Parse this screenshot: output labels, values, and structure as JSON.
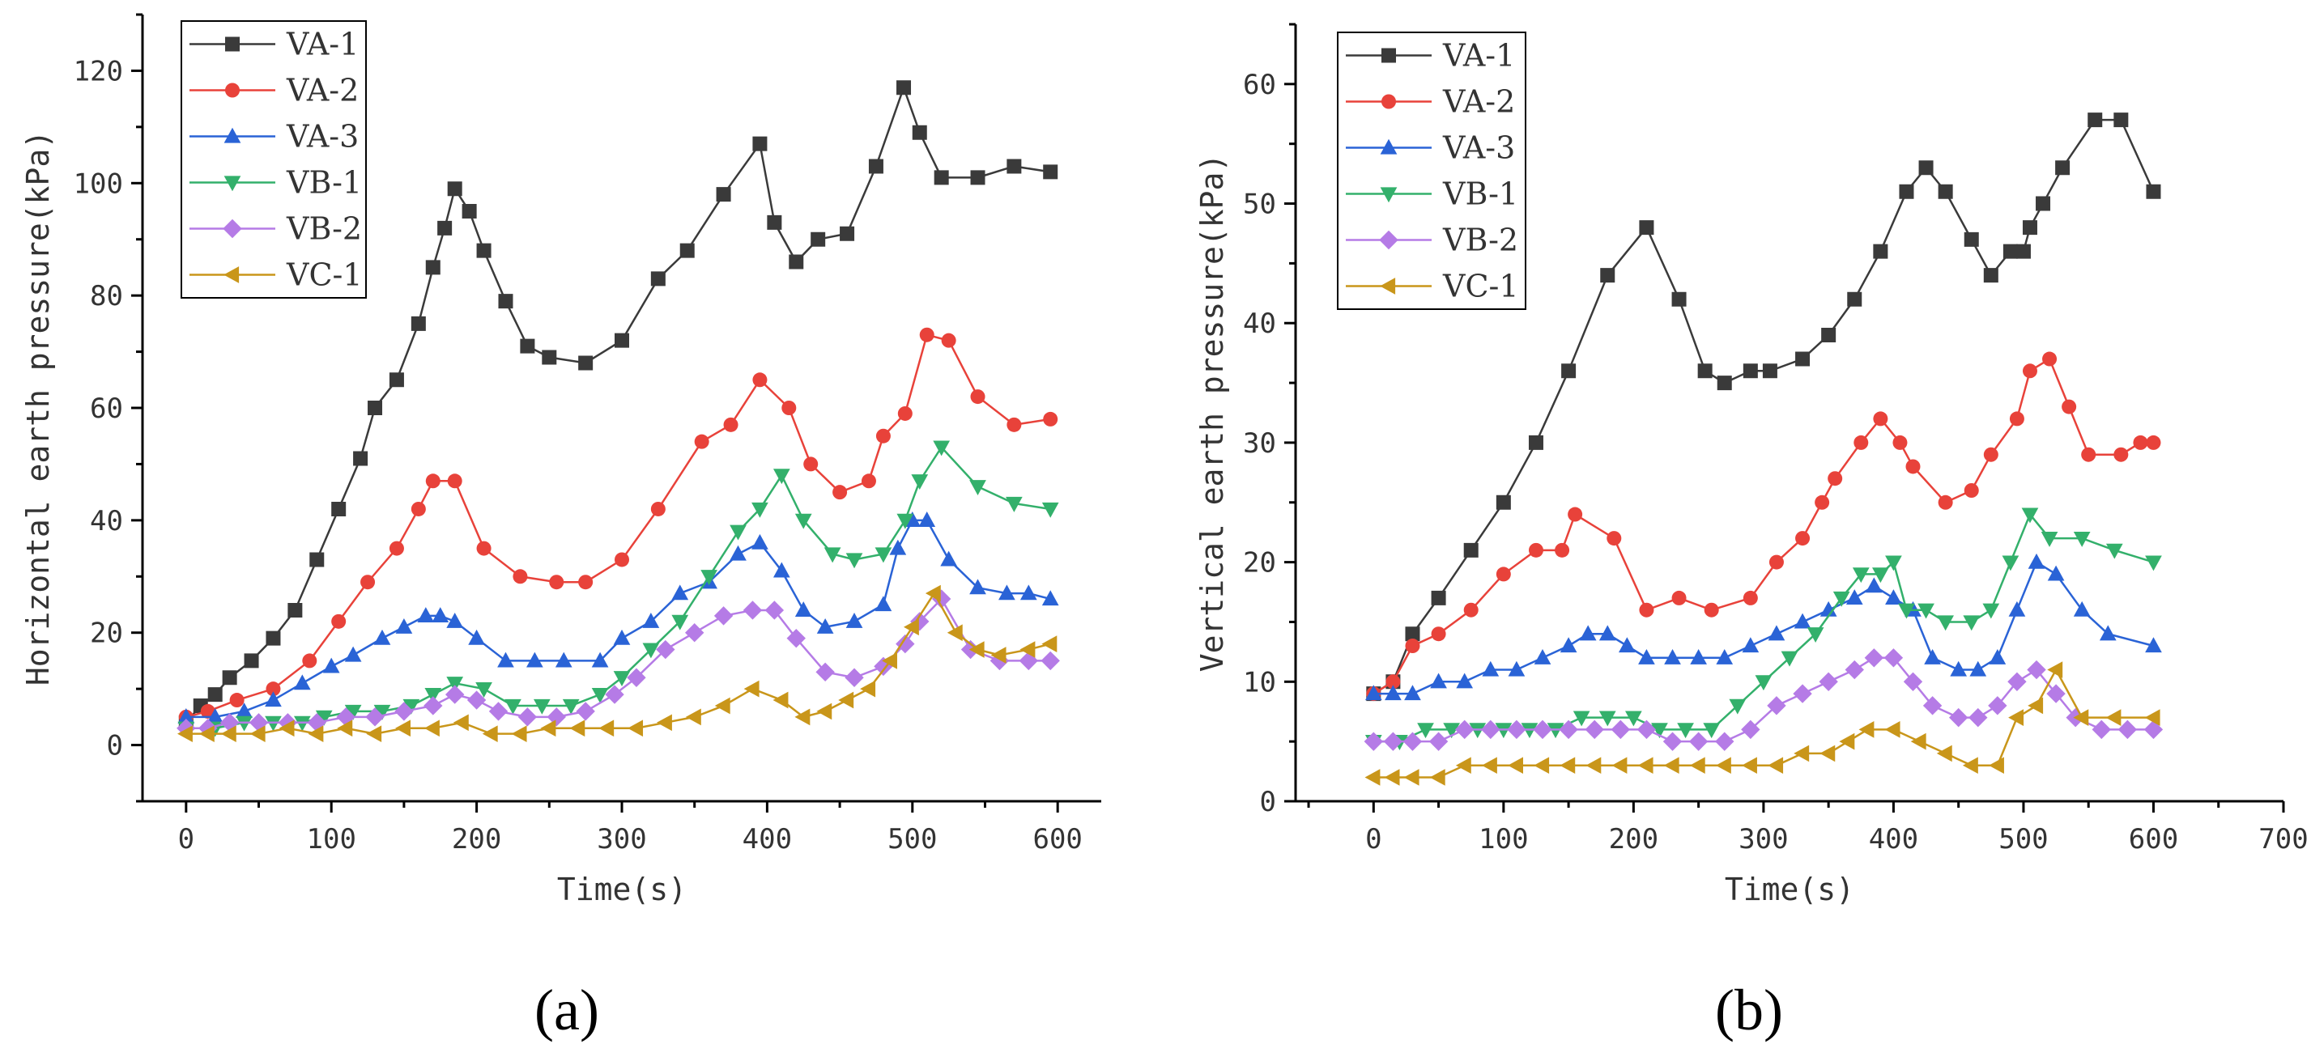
{
  "chart_data": [
    {
      "type": "line",
      "panel_label": "(a)",
      "xlabel": "Time(s)",
      "ylabel": "Horizontal earth pressure(kPa)",
      "xlim": [
        -30,
        630
      ],
      "ylim": [
        -10,
        130
      ],
      "xticks": [
        0,
        100,
        200,
        300,
        400,
        500,
        600
      ],
      "yticks": [
        0,
        20,
        40,
        60,
        80,
        100,
        120
      ],
      "legend_position": "top-left",
      "series": [
        {
          "name": "VA-1",
          "color": "#3a3a3a",
          "marker": "square",
          "x": [
            0,
            10,
            20,
            30,
            45,
            60,
            75,
            90,
            105,
            120,
            130,
            145,
            160,
            170,
            178,
            185,
            195,
            205,
            220,
            235,
            250,
            275,
            300,
            325,
            345,
            370,
            395,
            405,
            420,
            435,
            455,
            475,
            494,
            505,
            520,
            545,
            570,
            595
          ],
          "y": [
            4,
            7,
            9,
            12,
            15,
            19,
            24,
            33,
            42,
            51,
            60,
            65,
            75,
            85,
            92,
            99,
            95,
            88,
            79,
            71,
            69,
            68,
            72,
            83,
            88,
            98,
            107,
            93,
            86,
            90,
            91,
            103,
            117,
            109,
            101,
            101,
            103,
            102
          ]
        },
        {
          "name": "VA-2",
          "color": "#e8423a",
          "marker": "circle",
          "x": [
            0,
            15,
            35,
            60,
            85,
            105,
            125,
            145,
            160,
            170,
            185,
            205,
            230,
            255,
            275,
            300,
            325,
            355,
            375,
            395,
            415,
            430,
            450,
            470,
            480,
            495,
            510,
            525,
            545,
            570,
            595
          ],
          "y": [
            5,
            6,
            8,
            10,
            15,
            22,
            29,
            35,
            42,
            47,
            47,
            35,
            30,
            29,
            29,
            33,
            42,
            54,
            57,
            65,
            60,
            50,
            45,
            47,
            55,
            59,
            73,
            72,
            62,
            57,
            58
          ]
        },
        {
          "name": "VA-3",
          "color": "#2a63d6",
          "marker": "triangle-up",
          "x": [
            0,
            20,
            40,
            60,
            80,
            100,
            115,
            135,
            150,
            165,
            175,
            185,
            200,
            220,
            240,
            260,
            285,
            300,
            320,
            340,
            360,
            380,
            395,
            410,
            425,
            440,
            460,
            480,
            490,
            500,
            510,
            525,
            545,
            565,
            580,
            595
          ],
          "y": [
            5,
            5,
            6,
            8,
            11,
            14,
            16,
            19,
            21,
            23,
            23,
            22,
            19,
            15,
            15,
            15,
            15,
            19,
            22,
            27,
            29,
            34,
            36,
            31,
            24,
            21,
            22,
            25,
            35,
            40,
            40,
            33,
            28,
            27,
            27,
            26
          ]
        },
        {
          "name": "VB-1",
          "color": "#33b06b",
          "marker": "triangle-down",
          "x": [
            0,
            20,
            40,
            60,
            80,
            95,
            115,
            135,
            155,
            170,
            185,
            205,
            225,
            245,
            265,
            285,
            300,
            320,
            340,
            360,
            380,
            395,
            410,
            425,
            445,
            460,
            480,
            495,
            505,
            520,
            545,
            570,
            595
          ],
          "y": [
            3,
            3,
            4,
            4,
            4,
            5,
            6,
            6,
            7,
            9,
            11,
            10,
            7,
            7,
            7,
            9,
            12,
            17,
            22,
            30,
            38,
            42,
            48,
            40,
            34,
            33,
            34,
            40,
            47,
            53,
            46,
            43,
            42
          ]
        },
        {
          "name": "VB-2",
          "color": "#b57be6",
          "marker": "diamond",
          "x": [
            0,
            15,
            30,
            50,
            70,
            90,
            110,
            130,
            150,
            170,
            185,
            200,
            215,
            235,
            255,
            275,
            295,
            310,
            330,
            350,
            370,
            390,
            405,
            420,
            440,
            460,
            480,
            495,
            505,
            520,
            540,
            560,
            580,
            595
          ],
          "y": [
            3,
            3,
            4,
            4,
            4,
            4,
            5,
            5,
            6,
            7,
            9,
            8,
            6,
            5,
            5,
            6,
            9,
            12,
            17,
            20,
            23,
            24,
            24,
            19,
            13,
            12,
            14,
            18,
            22,
            26,
            17,
            15,
            15,
            15
          ]
        },
        {
          "name": "VC-1",
          "color": "#c9961a",
          "marker": "triangle-left",
          "x": [
            0,
            15,
            30,
            50,
            70,
            90,
            110,
            130,
            150,
            170,
            190,
            210,
            230,
            250,
            270,
            290,
            310,
            330,
            350,
            370,
            390,
            410,
            425,
            440,
            455,
            470,
            485,
            500,
            515,
            530,
            545,
            560,
            580,
            595
          ],
          "y": [
            2,
            2,
            2,
            2,
            3,
            2,
            3,
            2,
            3,
            3,
            4,
            2,
            2,
            3,
            3,
            3,
            3,
            4,
            5,
            7,
            10,
            8,
            5,
            6,
            8,
            10,
            15,
            21,
            27,
            20,
            17,
            16,
            17,
            18
          ]
        }
      ]
    },
    {
      "type": "line",
      "panel_label": "(b)",
      "xlabel": "Time(s)",
      "ylabel": "Vertical earth pressure(kPa)",
      "xlim": [
        -60,
        700
      ],
      "ylim": [
        0,
        65
      ],
      "xticks": [
        0,
        100,
        200,
        300,
        400,
        500,
        600,
        700
      ],
      "yticks": [
        0,
        10,
        20,
        30,
        40,
        50,
        60
      ],
      "legend_position": "top-left",
      "series": [
        {
          "name": "VA-1",
          "color": "#3a3a3a",
          "marker": "square",
          "x": [
            0,
            15,
            30,
            50,
            75,
            100,
            125,
            150,
            180,
            210,
            235,
            255,
            270,
            290,
            305,
            330,
            350,
            370,
            390,
            410,
            425,
            440,
            460,
            475,
            490,
            500,
            505,
            515,
            530,
            555,
            575,
            600
          ],
          "y": [
            9,
            10,
            14,
            17,
            21,
            25,
            30,
            36,
            44,
            48,
            42,
            36,
            35,
            36,
            36,
            37,
            39,
            42,
            46,
            51,
            53,
            51,
            47,
            44,
            46,
            46,
            48,
            50,
            53,
            57,
            57,
            51
          ]
        },
        {
          "name": "VA-2",
          "color": "#e8423a",
          "marker": "circle",
          "x": [
            0,
            15,
            30,
            50,
            75,
            100,
            125,
            145,
            155,
            185,
            210,
            235,
            260,
            290,
            310,
            330,
            345,
            355,
            375,
            390,
            405,
            415,
            440,
            460,
            475,
            495,
            505,
            520,
            535,
            550,
            575,
            590,
            600
          ],
          "y": [
            9,
            10,
            13,
            14,
            16,
            19,
            21,
            21,
            24,
            22,
            16,
            17,
            16,
            17,
            20,
            22,
            25,
            27,
            30,
            32,
            30,
            28,
            25,
            26,
            29,
            32,
            36,
            37,
            33,
            29,
            29,
            30,
            30
          ]
        },
        {
          "name": "VA-3",
          "color": "#2a63d6",
          "marker": "triangle-up",
          "x": [
            0,
            15,
            30,
            50,
            70,
            90,
            110,
            130,
            150,
            165,
            180,
            195,
            210,
            230,
            250,
            270,
            290,
            310,
            330,
            350,
            370,
            385,
            400,
            415,
            430,
            450,
            465,
            480,
            495,
            510,
            525,
            545,
            565,
            600
          ],
          "y": [
            9,
            9,
            9,
            10,
            10,
            11,
            11,
            12,
            13,
            14,
            14,
            13,
            12,
            12,
            12,
            12,
            13,
            14,
            15,
            16,
            17,
            18,
            17,
            16,
            12,
            11,
            11,
            12,
            16,
            20,
            19,
            16,
            14,
            13
          ]
        },
        {
          "name": "VB-1",
          "color": "#33b06b",
          "marker": "triangle-down",
          "x": [
            0,
            20,
            40,
            60,
            80,
            100,
            120,
            140,
            160,
            180,
            200,
            220,
            240,
            260,
            280,
            300,
            320,
            340,
            360,
            375,
            390,
            400,
            410,
            425,
            440,
            460,
            475,
            490,
            505,
            520,
            545,
            570,
            600
          ],
          "y": [
            5,
            5,
            6,
            6,
            6,
            6,
            6,
            6,
            7,
            7,
            7,
            6,
            6,
            6,
            8,
            10,
            12,
            14,
            17,
            19,
            19,
            20,
            16,
            16,
            15,
            15,
            16,
            20,
            24,
            22,
            22,
            21,
            20
          ]
        },
        {
          "name": "VB-2",
          "color": "#b57be6",
          "marker": "diamond",
          "x": [
            0,
            15,
            30,
            50,
            70,
            90,
            110,
            130,
            150,
            170,
            190,
            210,
            230,
            250,
            270,
            290,
            310,
            330,
            350,
            370,
            385,
            400,
            415,
            430,
            450,
            465,
            480,
            495,
            510,
            525,
            540,
            560,
            580,
            600
          ],
          "y": [
            5,
            5,
            5,
            5,
            6,
            6,
            6,
            6,
            6,
            6,
            6,
            6,
            5,
            5,
            5,
            6,
            8,
            9,
            10,
            11,
            12,
            12,
            10,
            8,
            7,
            7,
            8,
            10,
            11,
            9,
            7,
            6,
            6,
            6
          ]
        },
        {
          "name": "VC-1",
          "color": "#c9961a",
          "marker": "triangle-left",
          "x": [
            0,
            15,
            30,
            50,
            70,
            90,
            110,
            130,
            150,
            170,
            190,
            210,
            230,
            250,
            270,
            290,
            310,
            330,
            350,
            365,
            380,
            400,
            420,
            440,
            460,
            480,
            495,
            510,
            525,
            545,
            570,
            600
          ],
          "y": [
            2,
            2,
            2,
            2,
            3,
            3,
            3,
            3,
            3,
            3,
            3,
            3,
            3,
            3,
            3,
            3,
            3,
            4,
            4,
            5,
            6,
            6,
            5,
            4,
            3,
            3,
            7,
            8,
            11,
            7,
            7,
            7
          ]
        }
      ]
    }
  ]
}
